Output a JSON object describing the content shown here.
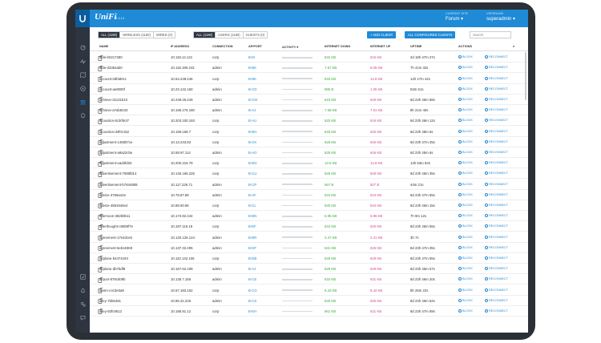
{
  "app": {
    "brand": "UniFi",
    "version": "5.4.14"
  },
  "site": {
    "label": "CURRENT SITE",
    "value": "Forum"
  },
  "user": {
    "label": "USERNAME",
    "value": "superadmin"
  },
  "filters": {
    "group1": [
      "ALL (1180)",
      "WIRELESS (1180)",
      "WIRED (0)"
    ],
    "group2": [
      "ALL (1180)",
      "USERS (1180)",
      "GUESTS (0)"
    ]
  },
  "buttons": {
    "add_client": "+ ADD CLIENT",
    "all_configured": "ALL CONFIGURED CLIENTS"
  },
  "search": {
    "placeholder": "Search"
  },
  "columns": {
    "name": "NAME",
    "ip": "IP ADDRESS",
    "connection": "CONNECTION",
    "apport": "AP/PORT",
    "activity": "ACTIVITY",
    "down": "INTERNET DOWN",
    "up": "INTERNET UP",
    "uptime": "UPTIME",
    "actions": "ACTIONS"
  },
  "actions": {
    "block": "BLOCK",
    "reconnect": "RECONNECT"
  },
  "colors": {
    "topbar": "#1f8ad6",
    "sidebar": "#2e3440",
    "down": "#3aaa35",
    "up": "#d04a8b"
  },
  "rows": [
    {
      "name": "able-b0217280",
      "ip": "10.118.14.121",
      "conn": "corp",
      "ap": "B-EI",
      "down": "632 KB",
      "up": "615 KB",
      "uptime": "2d 18h 47m 27s"
    },
    {
      "name": "able-d3354ab0",
      "ip": "10.118.190.243",
      "conn": "admin",
      "ap": "B-BK",
      "down": "7.67 KB",
      "up": "8.05 KB",
      "uptime": "7h 41m 32s"
    },
    {
      "name": "account-0dfa90cc",
      "ip": "10.64.248.246",
      "conn": "corp",
      "ap": "B-BK",
      "down": "633 KB",
      "up": "13.8 KB",
      "uptime": "14h 17m 44s"
    },
    {
      "name": "account-ae9000f",
      "ip": "10.23.142.160",
      "conn": "admin",
      "ap": "B-CD",
      "down": "985 B",
      "up": "1.05 KB",
      "uptime": "53m 51s"
    },
    {
      "name": "achieve-31131b10",
      "ip": "10.249.26.249",
      "conn": "admin",
      "ap": "B-CM",
      "down": "623 KB",
      "up": "629 KB",
      "uptime": "8d 23h 46m 58s"
    },
    {
      "name": "achieve-a7ab5043",
      "ip": "10.186.176.180",
      "conn": "admin",
      "ap": "B-AJ",
      "down": "7.58 KB",
      "up": "7.61 KB",
      "uptime": "8h 21m 40s"
    },
    {
      "name": "acoustics-8c30fe37",
      "ip": "10.203.100.193",
      "conn": "corp",
      "ap": "B-AU",
      "down": "633 KB",
      "up": "619 KB",
      "uptime": "8d 23h 46m 12s"
    },
    {
      "name": "acoustics-d4f0c152",
      "ip": "10.159.168.7",
      "conn": "corp",
      "ap": "B-BH",
      "down": "633 KB",
      "up": "625 KB",
      "uptime": "8d 23h 48m 5s"
    },
    {
      "name": "adjustment-149d07ce",
      "ip": "10.13.243.83",
      "conn": "corp",
      "ap": "B-CK",
      "down": "625 KB",
      "up": "625 KB",
      "uptime": "8d 23h 47m 25s"
    },
    {
      "name": "adjustment-a9a22cbe",
      "ip": "10.58.97.114",
      "conn": "admin",
      "ap": "B-AO",
      "down": "635 KB",
      "up": "626 KB",
      "uptime": "8d 23h 45m 6s"
    },
    {
      "name": "adjustment-ead3fd33",
      "ip": "10.200.216.79",
      "conn": "corp",
      "ap": "B-BO",
      "down": "13.6 KB",
      "up": "13.8 KB",
      "uptime": "13h 53m 53s"
    },
    {
      "name": "advertisement-7088fd14",
      "ip": "10.146.166.225",
      "conn": "corp",
      "ap": "B-CU",
      "down": "629 KB",
      "up": "629 KB",
      "uptime": "8d 23h 46m 35s"
    },
    {
      "name": "advertisement-b78449b8",
      "ip": "10.117.226.71",
      "conn": "admin",
      "ap": "B-CP",
      "down": "567 B",
      "up": "507 B",
      "uptime": "44m 21s"
    },
    {
      "name": "advice-3756a42e",
      "ip": "10.78.87.89",
      "conn": "admin",
      "ap": "B-AF",
      "down": "634 KB",
      "up": "623 KB",
      "uptime": "8d 23h 47m 55s"
    },
    {
      "name": "advice-4581946e4",
      "ip": "10.89.60.96",
      "conn": "corp",
      "ap": "B-CL",
      "down": "630 KB",
      "up": "634 KB",
      "uptime": "8d 23h 46m 15s"
    },
    {
      "name": "afternoon-382b9b11",
      "ip": "10.173.92.244",
      "conn": "admin",
      "ap": "B-BN",
      "down": "6.95 KB",
      "up": "6.95 KB",
      "uptime": "7h 9m 12s"
    },
    {
      "name": "afterthought-c8059f7e",
      "ip": "10.197.115.19",
      "conn": "corp",
      "ap": "B-EF",
      "down": "634 KB",
      "up": "620 KB",
      "uptime": "8d 23h 46m 55s"
    },
    {
      "name": "agreement-17e4dce5",
      "ip": "10.120.126.124",
      "conn": "admin",
      "ap": "B-BR",
      "down": "2.47 KB",
      "up": "2.41 KB",
      "uptime": "3h 7s"
    },
    {
      "name": "agreement-5eb18369",
      "ip": "10.137.32.295",
      "conn": "admin",
      "ap": "B-DF",
      "down": "631 KB",
      "up": "626 KB",
      "uptime": "8d 23h 47m 35s"
    },
    {
      "name": "airplane-b4474193",
      "ip": "10.110.142.106",
      "conn": "corp",
      "ap": "B-DB",
      "down": "629 KB",
      "up": "629 KB",
      "uptime": "8d 23h 47m 55s"
    },
    {
      "name": "airplane-db75df8",
      "ip": "10.167.62.199",
      "conn": "admin",
      "ap": "B-AJ",
      "down": "629 KB",
      "up": "629 KB",
      "uptime": "8d 23h 46m 57s"
    },
    {
      "name": "airport-878cd09b",
      "ip": "10.135.7.155",
      "conn": "admin",
      "ap": "B-CE",
      "down": "634 KB",
      "up": "631 KB",
      "uptime": "8d 23h 46m 20s"
    },
    {
      "name": "alarm-c4c3e0a8",
      "ip": "10.67.183.162",
      "conn": "corp",
      "ap": "B-CG",
      "down": "8.42 KB",
      "up": "8.42 KB",
      "uptime": "8h 26m 22s"
    },
    {
      "name": "alley-7bb5481",
      "ip": "10.86.31.226",
      "conn": "admin",
      "ap": "B-CS",
      "down": "630 KB",
      "up": "630 KB",
      "uptime": "8d 23h 46m 52s"
    },
    {
      "name": "alley-83fc9513",
      "ip": "10.186.81.12",
      "conn": "corp",
      "ap": "B-EH",
      "down": "661 KB",
      "up": "631 KB",
      "uptime": "8d 23h 47m 59s"
    }
  ]
}
